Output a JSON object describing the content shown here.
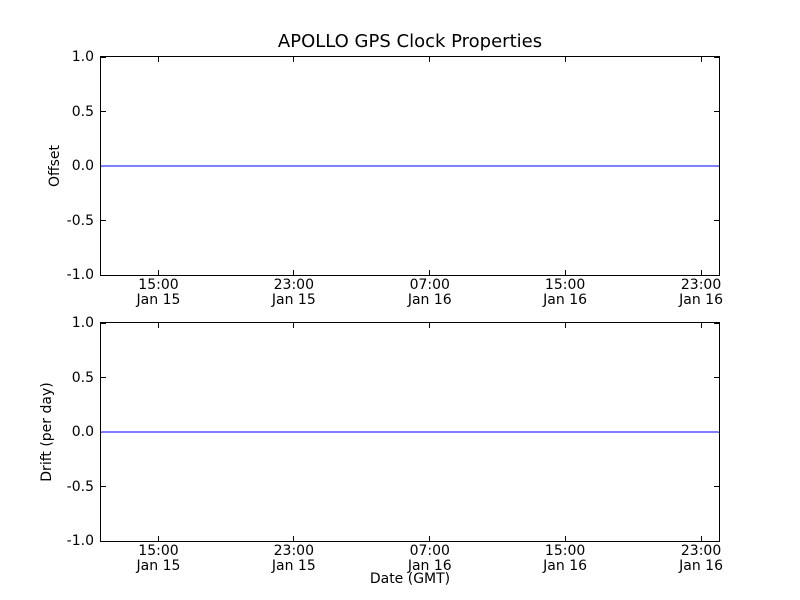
{
  "figure": {
    "background": "#ffffff",
    "frame_color": "#000000",
    "line_color": "#7f7fff"
  },
  "chart_data": [
    {
      "type": "line",
      "title": "APOLLO GPS Clock Properties",
      "xlabel": "",
      "ylabel": "Offset",
      "ylim": [
        -1.0,
        1.0
      ],
      "grid": false,
      "legend": null,
      "yticks": [
        {
          "label": "1.0",
          "value": 1.0
        },
        {
          "label": "0.5",
          "value": 0.5
        },
        {
          "label": "0.0",
          "value": 0.0
        },
        {
          "label": "-0.5",
          "value": -0.5
        },
        {
          "label": "-1.0",
          "value": -1.0
        }
      ],
      "xticks": [
        {
          "time": "15:00",
          "date": "Jan 15",
          "frac": 0.093
        },
        {
          "time": "23:00",
          "date": "Jan 15",
          "frac": 0.312
        },
        {
          "time": "07:00",
          "date": "Jan 16",
          "frac": 0.532
        },
        {
          "time": "15:00",
          "date": "Jan 16",
          "frac": 0.751
        },
        {
          "time": "23:00",
          "date": "Jan 16",
          "frac": 0.971
        }
      ],
      "series": [
        {
          "name": "Offset",
          "color": "#7f7fff",
          "x": [
            "15:00 Jan 15",
            "23:00 Jan 15",
            "07:00 Jan 16",
            "15:00 Jan 16",
            "23:00 Jan 16"
          ],
          "values": [
            0.0,
            0.0,
            0.0,
            0.0,
            0.0
          ],
          "constant_value": 0.0
        }
      ]
    },
    {
      "type": "line",
      "title": "",
      "xlabel": "Date (GMT)",
      "ylabel": "Drift (per day)",
      "ylim": [
        -1.0,
        1.0
      ],
      "grid": false,
      "legend": null,
      "yticks": [
        {
          "label": "1.0",
          "value": 1.0
        },
        {
          "label": "0.5",
          "value": 0.5
        },
        {
          "label": "0.0",
          "value": 0.0
        },
        {
          "label": "-0.5",
          "value": -0.5
        },
        {
          "label": "-1.0",
          "value": -1.0
        }
      ],
      "xticks": [
        {
          "time": "15:00",
          "date": "Jan 15",
          "frac": 0.093
        },
        {
          "time": "23:00",
          "date": "Jan 15",
          "frac": 0.312
        },
        {
          "time": "07:00",
          "date": "Jan 16",
          "frac": 0.532
        },
        {
          "time": "15:00",
          "date": "Jan 16",
          "frac": 0.751
        },
        {
          "time": "23:00",
          "date": "Jan 16",
          "frac": 0.971
        }
      ],
      "series": [
        {
          "name": "Drift (per day)",
          "color": "#7f7fff",
          "x": [
            "15:00 Jan 15",
            "23:00 Jan 15",
            "07:00 Jan 16",
            "15:00 Jan 16",
            "23:00 Jan 16"
          ],
          "values": [
            0.0,
            0.0,
            0.0,
            0.0,
            0.0
          ],
          "constant_value": 0.0
        }
      ]
    }
  ]
}
